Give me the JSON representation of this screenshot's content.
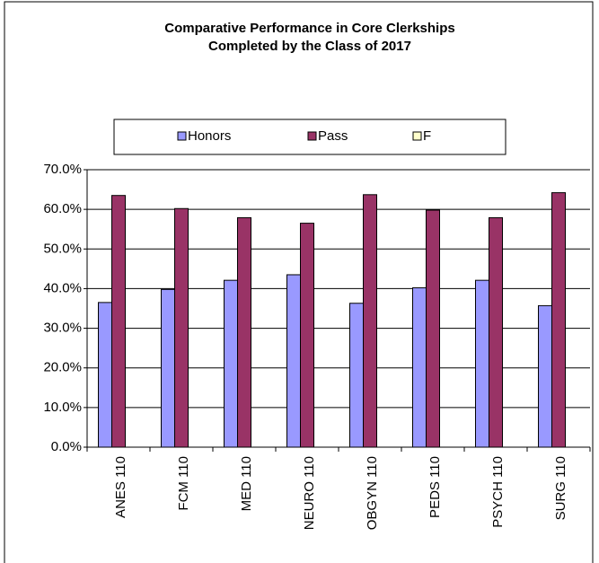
{
  "chart_data": {
    "type": "bar",
    "title": [
      "Comparative  Performance  in Core Clerkships",
      "Completed  by the Class  of 2017"
    ],
    "categories": [
      "ANES 110",
      "FCM 110",
      "MED 110",
      "NEURO 110",
      "OBGYN 110",
      "PEDS 110",
      "PSYCH 110",
      "SURG 110"
    ],
    "series": [
      {
        "name": "Honors",
        "color": "#9999ff",
        "values": [
          36.5,
          39.8,
          42.1,
          43.5,
          36.3,
          40.2,
          42.1,
          35.7
        ]
      },
      {
        "name": "Pass",
        "color": "#993366",
        "values": [
          63.5,
          60.2,
          57.9,
          56.5,
          63.7,
          59.8,
          57.9,
          64.2
        ]
      },
      {
        "name": "F",
        "color": "#ffffcc",
        "values": [
          0,
          0,
          0,
          0,
          0,
          0,
          0,
          0
        ]
      }
    ],
    "ylim": [
      0,
      70
    ],
    "yticks": [
      {
        "value": 0,
        "label": "0.0%"
      },
      {
        "value": 10,
        "label": "10.0%"
      },
      {
        "value": 20,
        "label": "20.0%"
      },
      {
        "value": 30,
        "label": "30.0%"
      },
      {
        "value": 40,
        "label": "40.0%"
      },
      {
        "value": 50,
        "label": "50.0%"
      },
      {
        "value": 60,
        "label": "60.0%"
      },
      {
        "value": 70,
        "label": "70.0%"
      }
    ],
    "grid": true,
    "legend": "top"
  }
}
